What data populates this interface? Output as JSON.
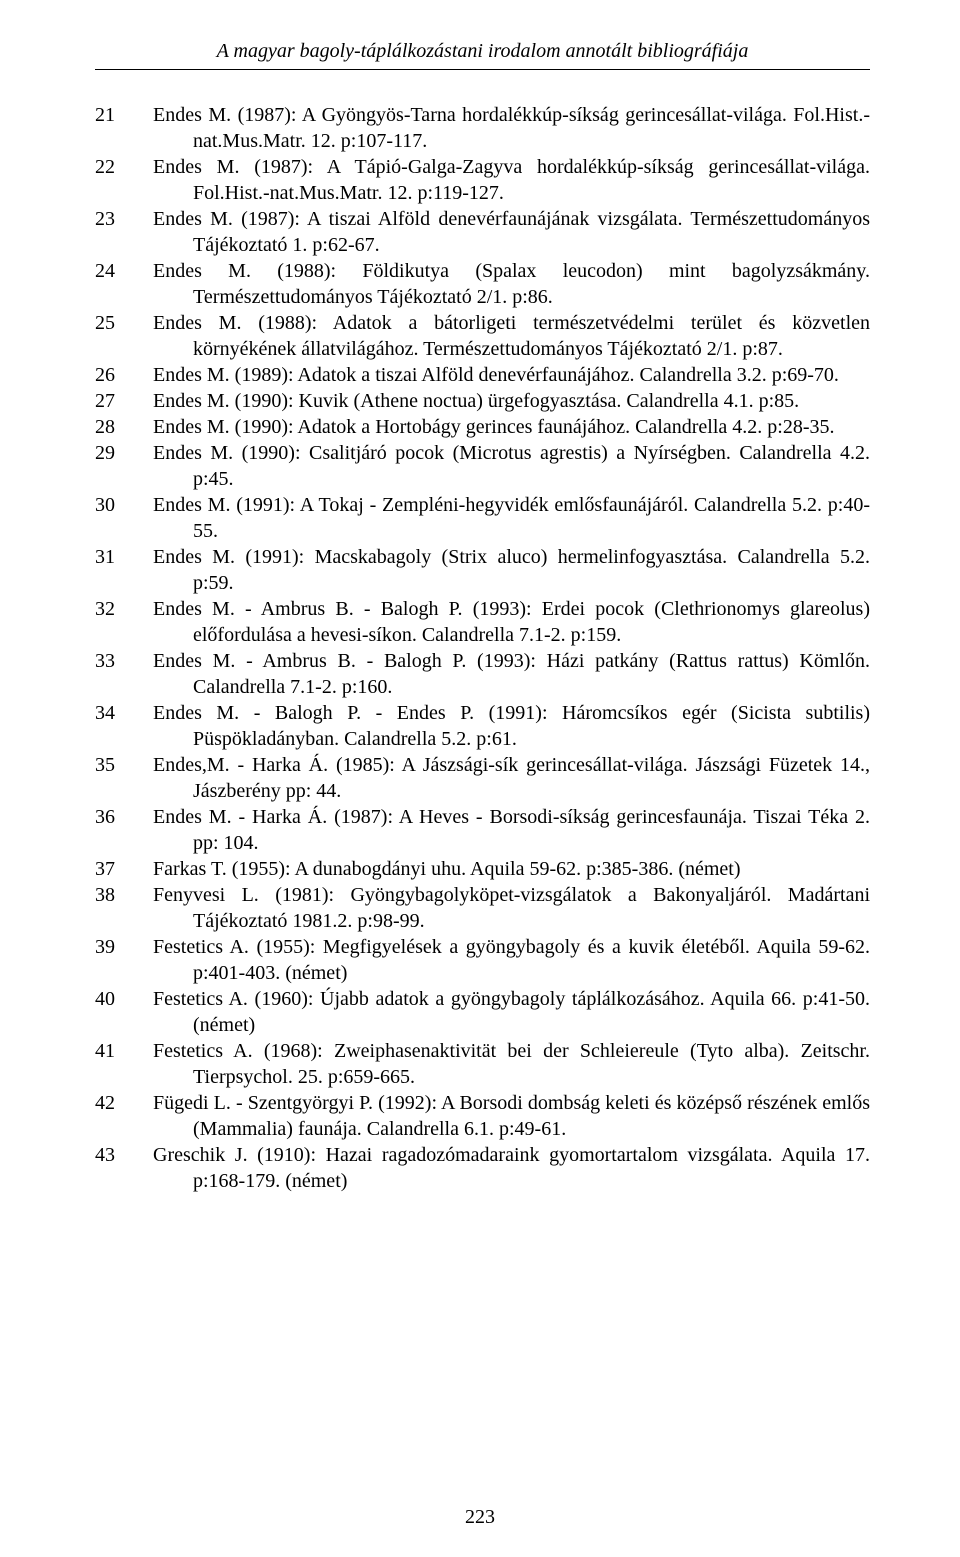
{
  "runningHead": "A magyar bagoly-táplálkozástani irodalom annotált bibliográfiája",
  "pageNumber": "223",
  "entries": [
    {
      "num": "21",
      "text": "Endes M. (1987): A Gyöngyös-Tarna hordalékkúp-síkság gerincesállat-világa. Fol.Hist.-nat.Mus.Matr. 12. p:107-117."
    },
    {
      "num": "22",
      "text": "Endes M. (1987): A Tápió-Galga-Zagyva hordalékkúp-síkság gerincesállat-világa. Fol.Hist.-nat.Mus.Matr. 12. p:119-127."
    },
    {
      "num": "23",
      "text": "Endes M. (1987): A tiszai Alföld denevérfaunájának vizsgálata. Természettudományos Tájékoztató 1. p:62-67."
    },
    {
      "num": "24",
      "text": "Endes M. (1988): Földikutya (Spalax leucodon) mint bagolyzsákmány. Természettudományos Tájékoztató 2/1. p:86."
    },
    {
      "num": "25",
      "text": "Endes M. (1988): Adatok a bátorligeti természetvédelmi terület és közvetlen környékének állatvilágához. Természettudományos Tájékoztató 2/1. p:87."
    },
    {
      "num": "26",
      "text": "Endes M. (1989): Adatok a tiszai Alföld denevérfaunájához. Calandrella 3.2. p:69-70."
    },
    {
      "num": "27",
      "text": "Endes M. (1990): Kuvik (Athene noctua) ürgefogyasztása. Calandrella 4.1. p:85."
    },
    {
      "num": "28",
      "text": "Endes M. (1990): Adatok a Hortobágy gerinces faunájához. Calandrella 4.2. p:28-35."
    },
    {
      "num": "29",
      "text": "Endes M. (1990): Csalitjáró pocok (Microtus agrestis) a Nyírségben. Calandrella 4.2. p:45."
    },
    {
      "num": "30",
      "text": "Endes M. (1991): A Tokaj - Zempléni-hegyvidék emlősfaunájáról. Calandrella 5.2. p:40-55."
    },
    {
      "num": "31",
      "text": "Endes M. (1991): Macskabagoly (Strix aluco) hermelinfogyasztása. Calandrella 5.2. p:59."
    },
    {
      "num": "32",
      "text": "Endes M. - Ambrus B. - Balogh P. (1993): Erdei pocok (Clethrionomys glareolus) előfordulása a hevesi-síkon. Calandrella 7.1-2. p:159."
    },
    {
      "num": "33",
      "text": "Endes M. - Ambrus B. - Balogh P. (1993): Házi patkány (Rattus rattus) Kömlőn. Calandrella 7.1-2. p:160."
    },
    {
      "num": "34",
      "text": "Endes M. - Balogh P. - Endes P. (1991): Háromcsíkos egér (Sicista subtilis) Püspökladányban. Calandrella 5.2. p:61."
    },
    {
      "num": "35",
      "text": "Endes,M. - Harka Á. (1985): A Jászsági-sík gerincesállat-világa. Jászsági Füzetek 14., Jászberény pp: 44."
    },
    {
      "num": "36",
      "text": "Endes M. - Harka Á. (1987): A Heves - Borsodi-síkság gerincesfaunája. Tiszai Téka 2. pp: 104."
    },
    {
      "num": "37",
      "text": "Farkas T. (1955): A dunabogdányi uhu. Aquila 59-62. p:385-386. (német)"
    },
    {
      "num": "38",
      "text": "Fenyvesi L. (1981): Gyöngybagolyköpet-vizsgálatok a Bakonyaljáról. Madártani Tájékoztató 1981.2. p:98-99."
    },
    {
      "num": "39",
      "text": "Festetics A. (1955): Megfigyelések a gyöngybagoly és a kuvik életéből. Aquila 59-62. p:401-403. (német)"
    },
    {
      "num": "40",
      "text": "Festetics A. (1960): Újabb adatok a gyöngybagoly táplálkozásához. Aquila 66. p:41-50. (német)"
    },
    {
      "num": "41",
      "text": "Festetics A. (1968): Zweiphasenaktivität bei der Schleiereule (Tyto alba). Zeitschr. Tierpsychol. 25. p:659-665."
    },
    {
      "num": "42",
      "text": "Fügedi L. - Szentgyörgyi P. (1992): A Borsodi dombság keleti és középső részének emlős (Mammalia) faunája. Calandrella 6.1. p:49-61."
    },
    {
      "num": "43",
      "text": "Greschik J. (1910): Hazai ragadozómadaraink gyomortartalom vizsgálata. Aquila 17. p:168-179. (német)"
    }
  ]
}
